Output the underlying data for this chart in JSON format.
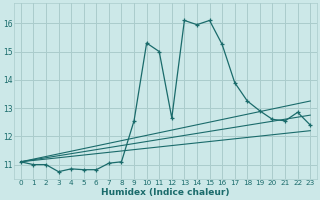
{
  "xlabel": "Humidex (Indice chaleur)",
  "bg_color": "#cce8e8",
  "grid_color": "#aacccc",
  "line_color": "#1a6b6b",
  "xlim": [
    -0.5,
    23.5
  ],
  "ylim": [
    10.5,
    16.7
  ],
  "yticks": [
    11,
    12,
    13,
    14,
    15,
    16
  ],
  "xticks": [
    0,
    1,
    2,
    3,
    4,
    5,
    6,
    7,
    8,
    9,
    10,
    11,
    12,
    13,
    14,
    15,
    16,
    17,
    18,
    19,
    20,
    21,
    22,
    23
  ],
  "main_x": [
    0,
    1,
    2,
    3,
    4,
    5,
    6,
    7,
    8,
    9,
    10,
    11,
    12,
    13,
    14,
    15,
    16,
    17,
    18,
    19,
    20,
    21,
    22,
    23
  ],
  "main_y": [
    11.1,
    11.0,
    11.0,
    10.75,
    10.85,
    10.82,
    10.82,
    11.05,
    11.1,
    12.55,
    15.3,
    15.0,
    12.65,
    16.1,
    15.95,
    16.1,
    15.25,
    13.9,
    13.25,
    12.9,
    12.6,
    12.55,
    12.85,
    12.4
  ],
  "trend1_x": [
    0,
    23
  ],
  "trend1_y": [
    11.1,
    13.25
  ],
  "trend2_x": [
    0,
    23
  ],
  "trend2_y": [
    11.1,
    12.75
  ],
  "trend3_x": [
    0,
    23
  ],
  "trend3_y": [
    11.1,
    12.2
  ]
}
